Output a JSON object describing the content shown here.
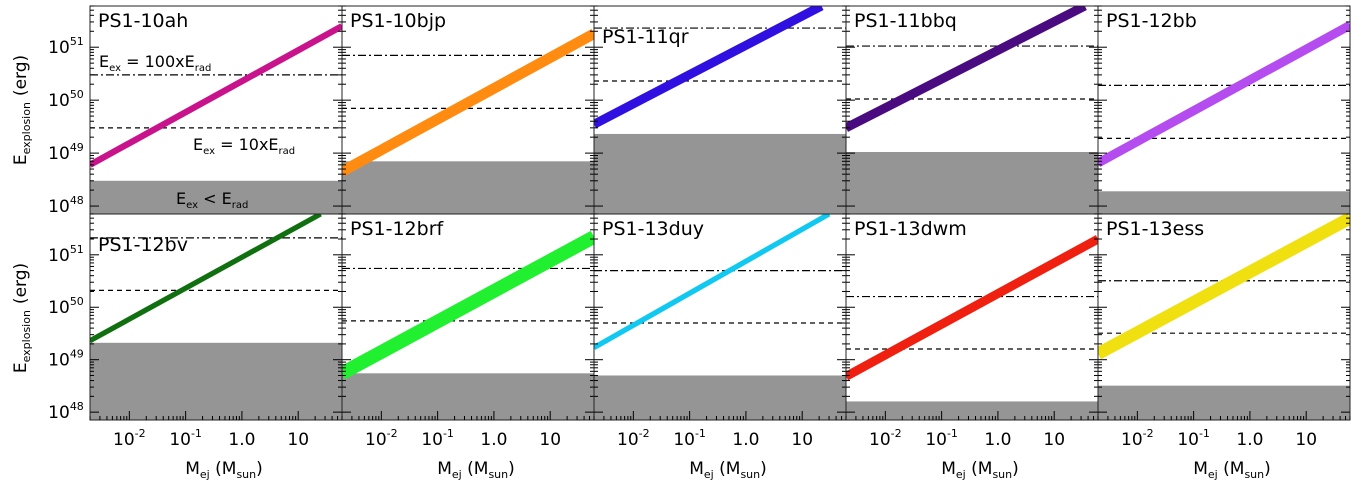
{
  "figure": {
    "ylabel_main": "E",
    "ylabel_sub": "explosion",
    "ylabel_unit": "(erg)",
    "xlabel_main": "M",
    "xlabel_sub": "ej",
    "xlabel_unit_main": "M",
    "xlabel_unit_sub": "sun",
    "x_tick_labels": [
      "10",
      "10",
      "1.0",
      "10"
    ],
    "x_tick_exponents": [
      "-2",
      "-1",
      "",
      ""
    ],
    "y_tick_base": "10",
    "y_tick_exponents": [
      "48",
      "49",
      "50",
      "51"
    ],
    "annotations": {
      "ratio_100_pre": "E",
      "ratio_100_sub": "ex",
      "ratio_100_mid": " = 100xE",
      "ratio_100_sub2": "rad",
      "ratio_10_pre": "E",
      "ratio_10_sub": "ex",
      "ratio_10_mid": " = 10xE",
      "ratio_10_sub2": "rad",
      "below_pre": "E",
      "below_sub": "ex",
      "below_mid": " < E",
      "below_sub2": "rad"
    }
  },
  "chart_data": [
    {
      "type": "line",
      "title": "PS1-10ah",
      "color": "#c8138c",
      "x_range": [
        0.002,
        60
      ],
      "y_scale": "log",
      "y_range": [
        1e+48,
        6e+51
      ],
      "line": {
        "x": [
          0.002,
          60
        ],
        "y": [
          6e+48,
          2.5e+51
        ]
      },
      "band_width_dex": 0.12,
      "e_rad": 3e+48,
      "e_ex_10x": 3e+49,
      "e_ex_100x": 3e+50
    },
    {
      "type": "line",
      "title": "PS1-10bjp",
      "color": "#ff8c10",
      "x_range": [
        0.002,
        60
      ],
      "y_scale": "log",
      "y_range": [
        1e+48,
        6e+51
      ],
      "line": {
        "x": [
          0.002,
          60
        ],
        "y": [
          4.5e+48,
          1.8e+51
        ]
      },
      "band_width_dex": 0.2,
      "e_rad": 7e+48,
      "e_ex_10x": 7e+49,
      "e_ex_100x": 7e+50
    },
    {
      "type": "line",
      "title": "PS1-11qr",
      "color": "#3010e0",
      "x_range": [
        0.002,
        60
      ],
      "y_scale": "log",
      "y_range": [
        1e+48,
        6e+51
      ],
      "line": {
        "x": [
          0.002,
          22
        ],
        "y": [
          3.5e+49,
          6e+51
        ]
      },
      "band_width_dex": 0.17,
      "e_rad": 2.3e+49,
      "e_ex_10x": 2.3e+50,
      "e_ex_100x": 2.3e+51
    },
    {
      "type": "line",
      "title": "PS1-11bbq",
      "color": "#4a0a80",
      "x_range": [
        0.002,
        60
      ],
      "y_scale": "log",
      "y_range": [
        1e+48,
        6e+51
      ],
      "line": {
        "x": [
          0.002,
          35
        ],
        "y": [
          3e+49,
          6e+51
        ]
      },
      "band_width_dex": 0.17,
      "e_rad": 1.05e+49,
      "e_ex_10x": 1.05e+50,
      "e_ex_100x": 1.05e+51
    },
    {
      "type": "line",
      "title": "PS1-12bb",
      "color": "#b44cf0",
      "x_range": [
        0.002,
        60
      ],
      "y_scale": "log",
      "y_range": [
        1e+48,
        6e+51
      ],
      "line": {
        "x": [
          0.002,
          60
        ],
        "y": [
          6.5e+48,
          2.6e+51
        ]
      },
      "band_width_dex": 0.17,
      "e_rad": 1.9e+48,
      "e_ex_10x": 1.9e+49,
      "e_ex_100x": 1.9e+50
    },
    {
      "type": "line",
      "title": "PS1-12bv",
      "color": "#107010",
      "x_range": [
        0.002,
        60
      ],
      "y_scale": "log",
      "y_range": [
        1e+48,
        6e+51
      ],
      "line": {
        "x": [
          0.002,
          25
        ],
        "y": [
          2.3e+49,
          6e+51
        ]
      },
      "band_width_dex": 0.1,
      "e_rad": 2.1e+49,
      "e_ex_10x": 2.1e+50,
      "e_ex_100x": 2.1e+51
    },
    {
      "type": "line",
      "title": "PS1-12brf",
      "color": "#20f030",
      "x_range": [
        0.002,
        60
      ],
      "y_scale": "log",
      "y_range": [
        1e+48,
        6e+51
      ],
      "line": {
        "x": [
          0.002,
          60
        ],
        "y": [
          5.5e+48,
          2.2e+51
        ]
      },
      "band_width_dex": 0.26,
      "e_rad": 5.5e+48,
      "e_ex_10x": 5.5e+49,
      "e_ex_100x": 5.5e+50
    },
    {
      "type": "line",
      "title": "PS1-13duy",
      "color": "#10c8f0",
      "x_range": [
        0.002,
        60
      ],
      "y_scale": "log",
      "y_range": [
        1e+48,
        6e+51
      ],
      "line": {
        "x": [
          0.002,
          30
        ],
        "y": [
          1.7e+49,
          6e+51
        ]
      },
      "band_width_dex": 0.1,
      "e_rad": 5e+48,
      "e_ex_10x": 5e+49,
      "e_ex_100x": 5e+50
    },
    {
      "type": "line",
      "title": "PS1-13dwm",
      "color": "#f02010",
      "x_range": [
        0.002,
        60
      ],
      "y_scale": "log",
      "y_range": [
        1e+48,
        6e+51
      ],
      "line": {
        "x": [
          0.002,
          60
        ],
        "y": [
          4.8e+48,
          2e+51
        ]
      },
      "band_width_dex": 0.17,
      "e_rad": 1.6e+48,
      "e_ex_10x": 1.6e+49,
      "e_ex_100x": 1.6e+50
    },
    {
      "type": "line",
      "title": "PS1-13ess",
      "color": "#f0e010",
      "x_range": [
        0.002,
        60
      ],
      "y_scale": "log",
      "y_range": [
        1e+48,
        6e+51
      ],
      "line": {
        "x": [
          0.002,
          60
        ],
        "y": [
          1.3e+49,
          5e+51
        ]
      },
      "band_width_dex": 0.24,
      "e_rad": 3.2e+48,
      "e_ex_10x": 3.2e+49,
      "e_ex_100x": 3.2e+50
    }
  ]
}
